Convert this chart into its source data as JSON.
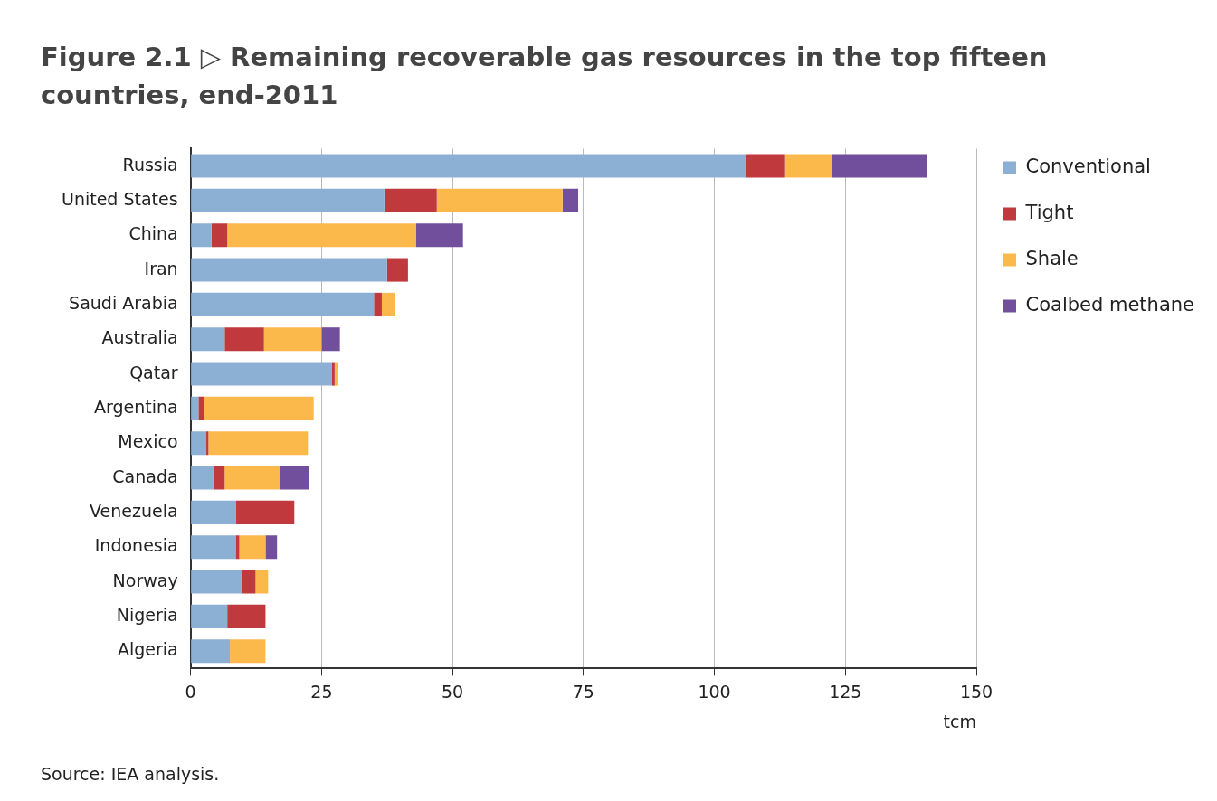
{
  "chart_data": {
    "type": "bar",
    "orientation": "horizontal",
    "stacked": true,
    "title": "Figure 2.1 ▷ Remaining recoverable gas resources in the top fifteen countries, end-2011",
    "categories": [
      "Russia",
      "United States",
      "China",
      "Iran",
      "Saudi Arabia",
      "Australia",
      "Qatar",
      "Argentina",
      "Mexico",
      "Canada",
      "Venezuela",
      "Indonesia",
      "Norway",
      "Nigeria",
      "Algeria"
    ],
    "series": [
      {
        "name": "Conventional",
        "color": "#8cafd4",
        "values": [
          106,
          37,
          4,
          37.5,
          35,
          6.5,
          27,
          1.5,
          3,
          4.3,
          8.7,
          8.6,
          9.8,
          7,
          7.5
        ]
      },
      {
        "name": "Tight",
        "color": "#c0393d",
        "values": [
          7.5,
          10,
          3,
          4,
          1.5,
          7.5,
          0.5,
          1,
          0.4,
          2.2,
          11.1,
          0.7,
          2.6,
          7.3,
          0
        ]
      },
      {
        "name": "Shale",
        "color": "#fbb94b",
        "values": [
          9,
          24,
          36,
          0,
          2.5,
          11,
          0.7,
          21,
          19,
          10.6,
          0,
          5,
          2.4,
          0,
          6.8
        ]
      },
      {
        "name": "Coalbed methane",
        "color": "#714f9c",
        "values": [
          18,
          3,
          9,
          0,
          0,
          3.5,
          0,
          0,
          0,
          5.5,
          0,
          2.2,
          0,
          0,
          0
        ]
      }
    ],
    "xlabel": "tcm",
    "xlim": [
      0,
      150
    ],
    "xticks": [
      0,
      25,
      50,
      75,
      100,
      125,
      150
    ],
    "grid": "x",
    "legend": "top right",
    "annotations": [
      "Source: IEA analysis."
    ]
  }
}
